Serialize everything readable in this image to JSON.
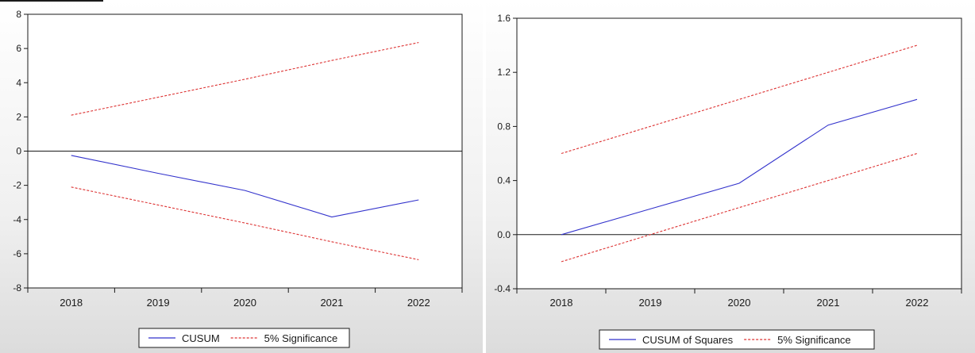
{
  "chart_data": [
    {
      "type": "line",
      "title": "",
      "xlabel": "",
      "ylabel": "",
      "categories": [
        "2018",
        "2019",
        "2020",
        "2021",
        "2022"
      ],
      "ylim": [
        -8,
        8
      ],
      "yticks": [
        "8",
        "6",
        "4",
        "2",
        "0",
        "-2",
        "-4",
        "-6",
        "-8"
      ],
      "ytick_values": [
        8,
        6,
        4,
        2,
        0,
        -2,
        -4,
        -6,
        -8
      ],
      "zero_line": true,
      "grid": false,
      "legend_position": "bottom-center",
      "series": [
        {
          "name": "CUSUM",
          "style": "solid",
          "color": "#3333cc",
          "values": [
            -0.25,
            -1.3,
            -2.3,
            -3.85,
            -2.85
          ]
        },
        {
          "name": "5% Significance",
          "style": "dashed",
          "color": "#dd3333",
          "values": [
            2.1,
            3.15,
            4.2,
            5.3,
            6.35
          ]
        },
        {
          "name": "",
          "style": "dashed",
          "color": "#dd3333",
          "values": [
            -2.1,
            -3.15,
            -4.2,
            -5.3,
            -6.35
          ]
        }
      ],
      "legend": [
        "CUSUM",
        "5% Significance"
      ]
    },
    {
      "type": "line",
      "title": "",
      "xlabel": "",
      "ylabel": "",
      "categories": [
        "2018",
        "2019",
        "2020",
        "2021",
        "2022"
      ],
      "ylim": [
        -0.4,
        1.6
      ],
      "yticks": [
        "1.6",
        "1.2",
        "0.8",
        "0.4",
        "0.0",
        "-0.4"
      ],
      "ytick_values": [
        1.6,
        1.2,
        0.8,
        0.4,
        0.0,
        -0.4
      ],
      "zero_line": true,
      "grid": false,
      "legend_position": "bottom-center",
      "series": [
        {
          "name": "CUSUM of Squares",
          "style": "solid",
          "color": "#3333cc",
          "values": [
            0.0,
            0.19,
            0.38,
            0.81,
            1.0
          ]
        },
        {
          "name": "5% Significance",
          "style": "dashed",
          "color": "#dd3333",
          "values": [
            0.6,
            0.8,
            1.0,
            1.2,
            1.4
          ]
        },
        {
          "name": "",
          "style": "dashed",
          "color": "#dd3333",
          "values": [
            -0.2,
            0.0,
            0.2,
            0.4,
            0.6
          ]
        }
      ],
      "legend": [
        "CUSUM of Squares",
        "5% Significance"
      ]
    }
  ]
}
